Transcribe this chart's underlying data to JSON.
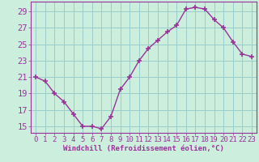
{
  "x": [
    0,
    1,
    2,
    3,
    4,
    5,
    6,
    7,
    8,
    9,
    10,
    11,
    12,
    13,
    14,
    15,
    16,
    17,
    18,
    19,
    20,
    21,
    22,
    23
  ],
  "y": [
    21.0,
    20.5,
    19.0,
    18.0,
    16.5,
    15.0,
    15.0,
    14.7,
    16.2,
    19.5,
    21.0,
    23.0,
    24.5,
    25.5,
    26.5,
    27.3,
    29.3,
    29.5,
    29.3,
    28.0,
    27.0,
    25.3,
    23.8,
    23.5
  ],
  "line_color": "#993399",
  "marker": "+",
  "marker_size": 4,
  "bg_color": "#cceedd",
  "grid_color": "#99cccc",
  "xlabel": "Windchill (Refroidissement éolien,°C)",
  "ylabel_ticks": [
    15,
    17,
    19,
    21,
    23,
    25,
    27,
    29
  ],
  "xlim": [
    -0.5,
    23.5
  ],
  "ylim": [
    14.2,
    30.2
  ],
  "xtick_labels": [
    "0",
    "1",
    "2",
    "3",
    "4",
    "5",
    "6",
    "7",
    "8",
    "9",
    "10",
    "11",
    "12",
    "13",
    "14",
    "15",
    "16",
    "17",
    "18",
    "19",
    "20",
    "21",
    "22",
    "23"
  ],
  "line_color_spine": "#993399",
  "tick_color": "#993399",
  "label_color": "#993399",
  "font_size_label": 6.5,
  "font_size_tick": 6.5,
  "font_size_ytick": 7.5,
  "lw": 1.0
}
